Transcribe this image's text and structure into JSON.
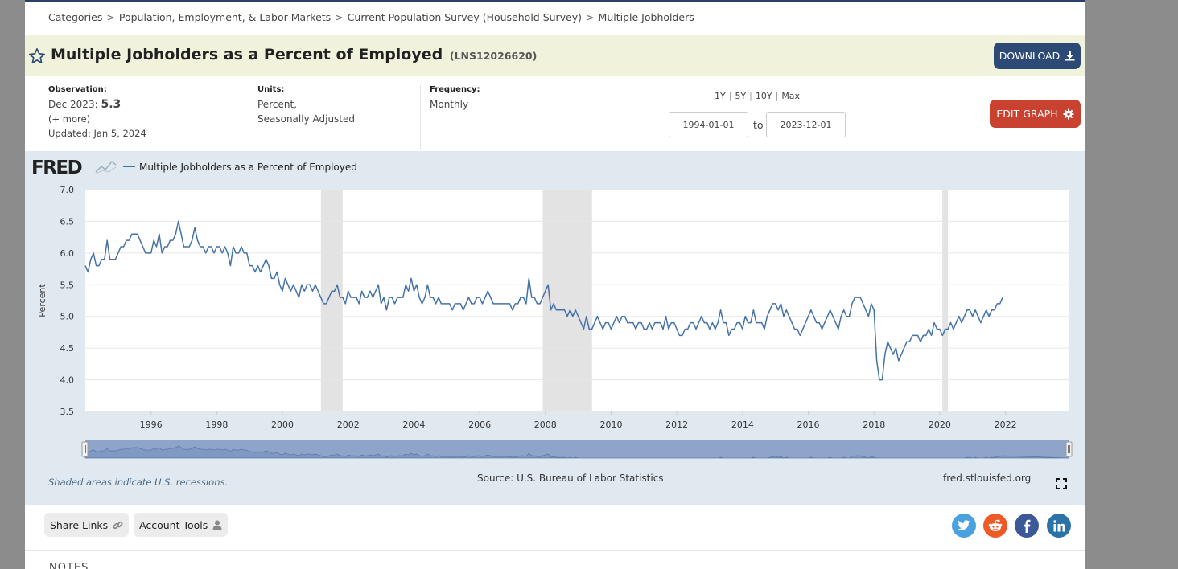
{
  "breadcrumb": {
    "items": [
      "Categories",
      "Population, Employment, & Labor Markets",
      "Current Population Survey (Household Survey)",
      "Multiple Jobholders"
    ],
    "separator": ">"
  },
  "header": {
    "title": "Multiple Jobholders as a Percent of Employed",
    "series_id": "(LNS12026620)",
    "download_label": "DOWNLOAD"
  },
  "observation": {
    "label": "Observation:",
    "date": "Dec 2023:",
    "value": "5.3",
    "more": "(+ more)",
    "updated": "Updated: Jan 5, 2024"
  },
  "units": {
    "label": "Units:",
    "line1": "Percent,",
    "line2": "Seasonally Adjusted"
  },
  "frequency": {
    "label": "Frequency:",
    "value": "Monthly"
  },
  "ranges": {
    "options": [
      "1Y",
      "5Y",
      "10Y",
      "Max"
    ],
    "separator": "|"
  },
  "dates": {
    "start": "1994-01-01",
    "end": "2023-12-01",
    "to_label": "to"
  },
  "edit_label": "EDIT GRAPH",
  "chart_data": {
    "type": "line",
    "logo": "FRED",
    "legend": "Multiple Jobholders as a Percent of Employed",
    "ylabel": "Percent",
    "xlabel": "",
    "ylim": [
      3.5,
      7.0
    ],
    "xlim": [
      1994.0,
      2023.92
    ],
    "yticks": [
      "3.5",
      "4.0",
      "4.5",
      "5.0",
      "5.5",
      "6.0",
      "6.5",
      "7.0"
    ],
    "xticks": [
      "1996",
      "1998",
      "2000",
      "2002",
      "2004",
      "2006",
      "2008",
      "2010",
      "2012",
      "2014",
      "2016",
      "2018",
      "2020",
      "2022"
    ],
    "grid": true,
    "line_color": "#4572a7",
    "recessions": [
      [
        2001.17,
        2001.83
      ],
      [
        2007.92,
        2009.42
      ],
      [
        2020.08,
        2020.25
      ]
    ],
    "series": [
      {
        "name": "Multiple Jobholders as a Percent of Employed",
        "start_year": 1994.0,
        "step": 0.08333,
        "values": [
          5.8,
          5.7,
          5.9,
          6.0,
          5.8,
          5.8,
          5.9,
          5.9,
          6.2,
          5.9,
          5.9,
          5.9,
          6.0,
          6.1,
          6.1,
          6.2,
          6.2,
          6.3,
          6.3,
          6.3,
          6.2,
          6.1,
          6.0,
          6.0,
          6.0,
          6.2,
          6.1,
          6.3,
          6.0,
          6.1,
          6.1,
          6.2,
          6.2,
          6.3,
          6.5,
          6.3,
          6.1,
          6.1,
          6.1,
          6.2,
          6.4,
          6.2,
          6.1,
          6.1,
          6.0,
          6.1,
          6.1,
          6.0,
          6.1,
          6.1,
          6.0,
          6.1,
          6.0,
          5.8,
          6.1,
          6.0,
          6.0,
          6.1,
          6.0,
          6.0,
          5.8,
          5.8,
          5.7,
          5.8,
          5.7,
          5.8,
          5.9,
          5.8,
          5.6,
          5.6,
          5.7,
          5.5,
          5.4,
          5.6,
          5.5,
          5.4,
          5.5,
          5.4,
          5.3,
          5.5,
          5.4,
          5.5,
          5.5,
          5.4,
          5.5,
          5.4,
          5.3,
          5.2,
          5.2,
          5.3,
          5.4,
          5.4,
          5.5,
          5.3,
          5.3,
          5.2,
          5.4,
          5.3,
          5.3,
          5.3,
          5.2,
          5.4,
          5.3,
          5.3,
          5.4,
          5.3,
          5.4,
          5.5,
          5.2,
          5.3,
          5.1,
          5.3,
          5.3,
          5.2,
          5.3,
          5.3,
          5.3,
          5.5,
          5.4,
          5.6,
          5.4,
          5.5,
          5.3,
          5.2,
          5.3,
          5.5,
          5.3,
          5.3,
          5.2,
          5.3,
          5.2,
          5.2,
          5.2,
          5.2,
          5.1,
          5.2,
          5.2,
          5.2,
          5.1,
          5.2,
          5.3,
          5.2,
          5.2,
          5.3,
          5.3,
          5.2,
          5.3,
          5.4,
          5.3,
          5.2,
          5.2,
          5.2,
          5.2,
          5.2,
          5.2,
          5.2,
          5.1,
          5.2,
          5.2,
          5.3,
          5.3,
          5.2,
          5.6,
          5.3,
          5.3,
          5.2,
          5.2,
          5.3,
          5.4,
          5.5,
          5.1,
          5.2,
          5.1,
          5.1,
          5.1,
          5.1,
          5.0,
          5.1,
          5.0,
          5.1,
          5.0,
          4.9,
          4.8,
          5.0,
          4.8,
          4.8,
          4.9,
          5.0,
          4.9,
          4.8,
          4.9,
          4.9,
          4.8,
          4.9,
          5.0,
          4.9,
          5.0,
          5.0,
          4.9,
          4.9,
          4.9,
          4.8,
          4.9,
          4.9,
          4.8,
          4.8,
          4.9,
          4.8,
          4.9,
          4.9,
          4.9,
          4.8,
          5.0,
          4.8,
          4.9,
          4.9,
          4.8,
          4.7,
          4.7,
          4.8,
          4.8,
          4.9,
          4.9,
          4.8,
          4.9,
          5.0,
          4.9,
          4.9,
          4.8,
          4.9,
          4.8,
          4.9,
          5.1,
          4.9,
          4.9,
          4.7,
          4.8,
          4.8,
          4.9,
          4.9,
          4.8,
          5.0,
          4.9,
          4.9,
          5.1,
          4.9,
          4.9,
          4.9,
          4.8,
          5.0,
          5.1,
          5.2,
          5.2,
          5.1,
          5.2,
          5.0,
          5.1,
          5.0,
          4.9,
          4.8,
          4.8,
          4.7,
          4.8,
          4.9,
          5.0,
          5.1,
          5.0,
          4.9,
          4.9,
          4.8,
          4.9,
          5.0,
          5.1,
          5.0,
          4.9,
          4.8,
          5.0,
          5.1,
          5.0,
          5.0,
          5.2,
          5.3,
          5.3,
          5.3,
          5.2,
          5.1,
          5.0,
          5.2,
          5.1,
          4.3,
          4.0,
          4.0,
          4.4,
          4.6,
          4.5,
          4.4,
          4.5,
          4.3,
          4.4,
          4.5,
          4.6,
          4.6,
          4.7,
          4.7,
          4.7,
          4.6,
          4.7,
          4.7,
          4.8,
          4.7,
          4.9,
          4.8,
          4.8,
          4.7,
          4.8,
          4.8,
          4.9,
          4.8,
          4.9,
          5.0,
          4.9,
          5.0,
          5.1,
          5.1,
          5.0,
          5.1,
          5.0,
          4.9,
          5.0,
          5.1,
          5.0,
          5.1,
          5.1,
          5.2,
          5.2,
          5.3
        ]
      }
    ]
  },
  "footer": {
    "recession_note": "Shaded areas indicate U.S. recessions.",
    "source": "Source: U.S. Bureau of Labor Statistics",
    "url": "fred.stlouisfed.org"
  },
  "actions": {
    "share_links": "Share Links",
    "account_tools": "Account Tools"
  },
  "notes_label": "NOTES",
  "social": [
    "twitter",
    "reddit",
    "facebook",
    "linkedin"
  ]
}
